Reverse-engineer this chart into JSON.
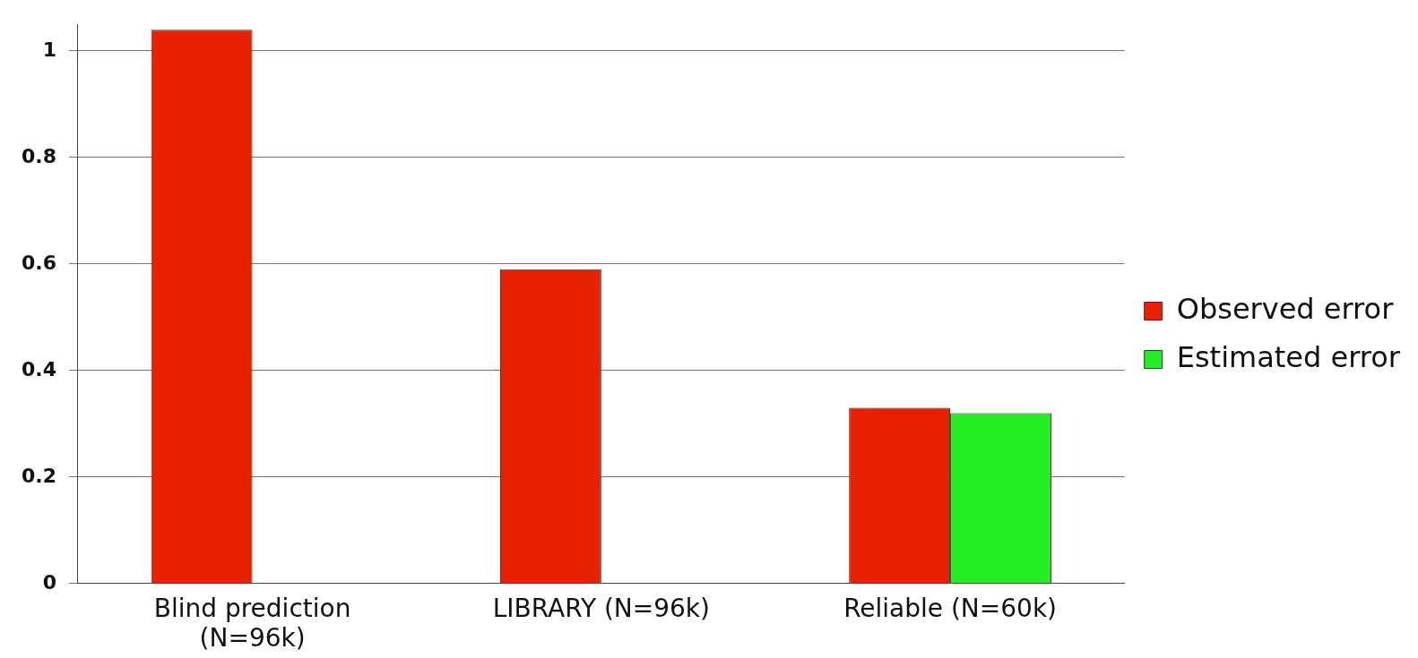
{
  "chart_data": {
    "type": "bar",
    "categories": [
      "Blind prediction\n(N=96k)",
      "LIBRARY (N=96k)",
      "Reliable (N=60k)"
    ],
    "series": [
      {
        "name": "Observed error",
        "color": "#e62200",
        "values": [
          1.04,
          0.59,
          0.33
        ]
      },
      {
        "name": "Estimated error",
        "color": "#22ee22",
        "values": [
          null,
          null,
          0.32
        ]
      }
    ],
    "ylim": [
      0,
      1.05
    ],
    "yticks": [
      0,
      0.2,
      0.4,
      0.6,
      0.8,
      1
    ],
    "grid": "y",
    "legend": "right"
  }
}
